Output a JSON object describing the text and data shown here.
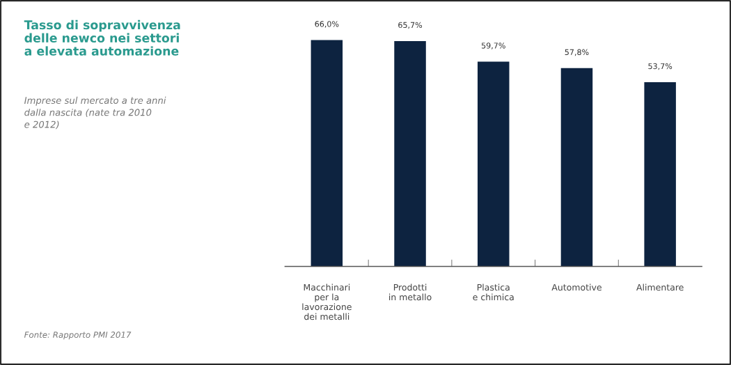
{
  "chart_data": {
    "type": "bar",
    "title": "Tasso di sopravvivenza\ndelle newco nei settori\na elevata automazione",
    "subtitle": "Imprese sul mercato a tre anni\ndalla nascita (nate tra 2010\ne 2012)",
    "annotations": [
      "Fonte: Rapporto PMI 2017"
    ],
    "categories": [
      "Macchinari\nper la\nlavorazione\ndei metalli",
      "Prodotti\nin metallo",
      "Plastica\ne chimica",
      "Automotive",
      "Alimentare"
    ],
    "values": [
      66.0,
      65.7,
      59.7,
      57.8,
      53.7
    ],
    "value_labels": [
      "66,0%",
      "65,7%",
      "59,7%",
      "57,8%",
      "53,7%"
    ],
    "color": "#0d2340",
    "tick_labels": "x",
    "grid": false,
    "legend": false
  }
}
